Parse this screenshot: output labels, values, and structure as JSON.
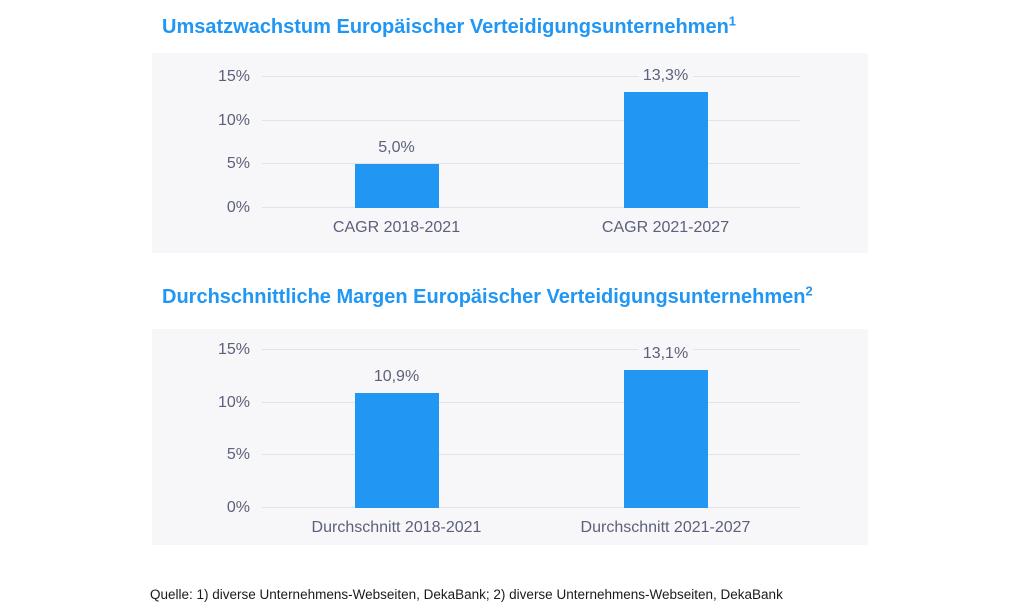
{
  "colors": {
    "accent_blue": "#2196f3",
    "bar_fill": "#2196f3",
    "panel_background": "#f7f7f9",
    "gridline": "#e2e2ea",
    "axis_text": "#5c607a",
    "source_text": "#1b1b1d",
    "page_background": "#ffffff"
  },
  "source": {
    "note": "Quelle: 1) diverse Unternehmens-Webseiten, DekaBank; 2) diverse Unternehmens-Webseiten, DekaBank"
  },
  "chart_data": [
    {
      "type": "bar",
      "title": "Umsatzwachstum Europäischer Verteidigungsunternehmen",
      "footnote_mark": "1",
      "categories": [
        "CAGR 2018-2021",
        "CAGR 2021-2027"
      ],
      "values": [
        5.0,
        13.3
      ],
      "value_labels": [
        "5,0%",
        "13,3%"
      ],
      "xlabel": "",
      "ylabel": "",
      "ylim": [
        0,
        15
      ],
      "ytick_values": [
        0,
        5,
        10,
        15
      ],
      "ytick_labels": [
        "0%",
        "5%",
        "10%",
        "15%"
      ],
      "grid": true,
      "legend": "none"
    },
    {
      "type": "bar",
      "title": "Durchschnittliche Margen Europäischer Verteidigungsunternehmen",
      "footnote_mark": "2",
      "categories": [
        "Durchschnitt 2018-2021",
        "Durchschnitt 2021-2027"
      ],
      "values": [
        10.9,
        13.1
      ],
      "value_labels": [
        "10,9%",
        "13,1%"
      ],
      "xlabel": "",
      "ylabel": "",
      "ylim": [
        0,
        15
      ],
      "ytick_values": [
        0,
        5,
        10,
        15
      ],
      "ytick_labels": [
        "0%",
        "5%",
        "10%",
        "15%"
      ],
      "grid": true,
      "legend": "none"
    }
  ]
}
